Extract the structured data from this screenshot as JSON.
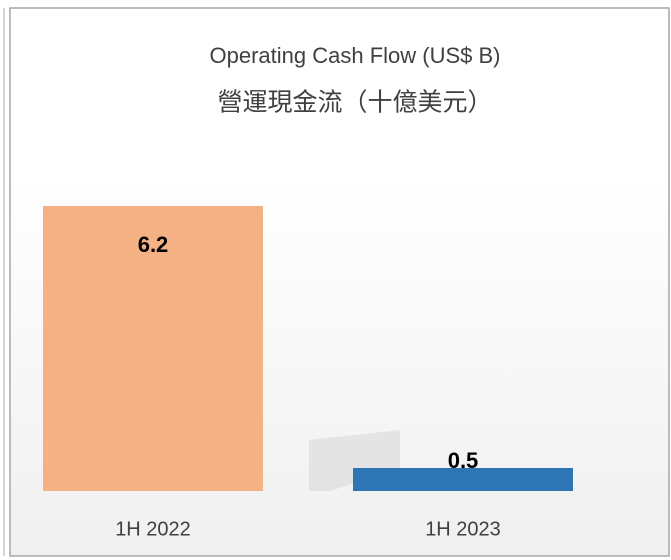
{
  "chart_data": {
    "type": "bar",
    "title": "Operating Cash Flow (US$ B)",
    "subtitle": "營運現金流（十億美元）",
    "categories": [
      "1H 2022",
      "1H 2023"
    ],
    "values": [
      6.2,
      0.5
    ],
    "colors": [
      "#f4b183",
      "#2e75b6"
    ]
  }
}
